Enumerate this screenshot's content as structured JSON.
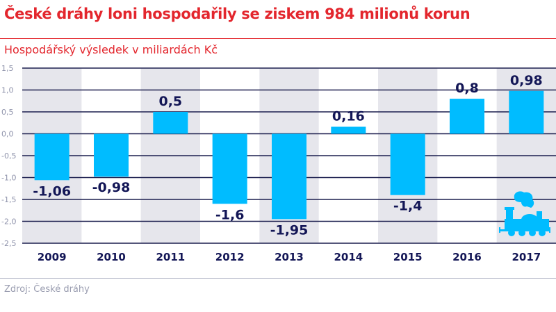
{
  "title": "České dráhy loni hospodařily se ziskem 984 milionů korun",
  "source": "Zdroj: České dráhy",
  "colors": {
    "accent": "#e3262d",
    "bar": "#00bcff",
    "band": "#e6e6ec",
    "grid": "#1c1f4f",
    "label": "#131656",
    "tick": "#8f93ab"
  },
  "icon": "steam-locomotive-icon",
  "chart_data": {
    "type": "bar",
    "title": "Hospodářský výsledek v miliardách Kč",
    "categories": [
      "2009",
      "2010",
      "2011",
      "2012",
      "2013",
      "2014",
      "2015",
      "2016",
      "2017"
    ],
    "values": [
      -1.06,
      -0.98,
      0.5,
      -1.6,
      -1.95,
      0.16,
      -1.4,
      0.8,
      0.98
    ],
    "data_labels": [
      "-1,06",
      "-0,98",
      "0,5",
      "-1,6",
      "-1,95",
      "0,16",
      "-1,4",
      "0,8",
      "0,98"
    ],
    "ylim": [
      -2.5,
      1.5
    ],
    "yticks": [
      1.5,
      1.0,
      0.5,
      0.0,
      -0.5,
      -1.0,
      -1.5,
      -2.0,
      -2.5
    ],
    "ytick_labels": [
      "1,5",
      "1,0",
      "0,5",
      "0,0",
      "-0,5",
      "-1,0",
      "-1,5",
      "-2,0",
      "-2,5"
    ],
    "grid": true,
    "alternating_bands": true,
    "xlabel": "",
    "ylabel": ""
  }
}
